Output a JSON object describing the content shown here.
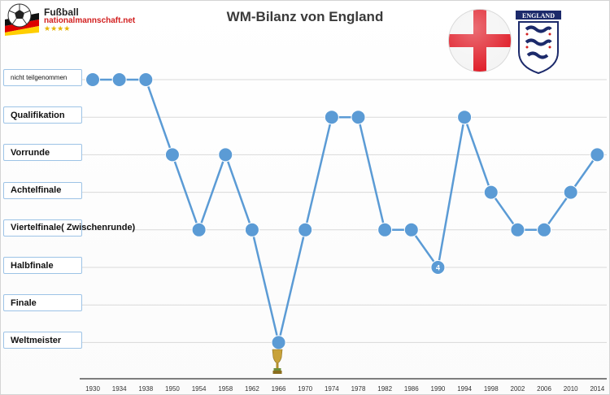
{
  "logo": {
    "line1": "Fußball",
    "line2": "nationalmannschaft.net",
    "stars": "★★★★"
  },
  "crest": {
    "label": "ENGLAND"
  },
  "chart_data": {
    "type": "line",
    "title": "WM-Bilanz von England",
    "xlabel": "",
    "ylabel": "",
    "categories": [
      "nicht teilgenommen",
      "Qualifikation",
      "Vorrunde",
      "Achtelfinale",
      "Viertelfinale( Zwischenrunde)",
      "Halbfinale",
      "Finale",
      "Weltmeister"
    ],
    "x": [
      "1930",
      "1934",
      "1938",
      "1950",
      "1954",
      "1958",
      "1962",
      "1966",
      "1970",
      "1974",
      "1978",
      "1982",
      "1986",
      "1990",
      "1994",
      "1998",
      "2002",
      "2006",
      "2010",
      "2014"
    ],
    "series": [
      {
        "name": "England",
        "color": "#5b9bd5",
        "values": [
          "nicht teilgenommen",
          "nicht teilgenommen",
          "nicht teilgenommen",
          "Vorrunde",
          "Viertelfinale( Zwischenrunde)",
          "Vorrunde",
          "Viertelfinale( Zwischenrunde)",
          "Weltmeister",
          "Viertelfinale( Zwischenrunde)",
          "Qualifikation",
          "Qualifikation",
          "Viertelfinale( Zwischenrunde)",
          "Viertelfinale( Zwischenrunde)",
          "Halbfinale",
          "Qualifikation",
          "Achtelfinale",
          "Viertelfinale( Zwischenrunde)",
          "Viertelfinale( Zwischenrunde)",
          "Achtelfinale",
          "Vorrunde"
        ]
      }
    ],
    "annotations": [
      {
        "x": "1990",
        "text": "4"
      },
      {
        "x": "1966",
        "text": "trophy-icon"
      }
    ],
    "grid": true,
    "legend": "none"
  }
}
